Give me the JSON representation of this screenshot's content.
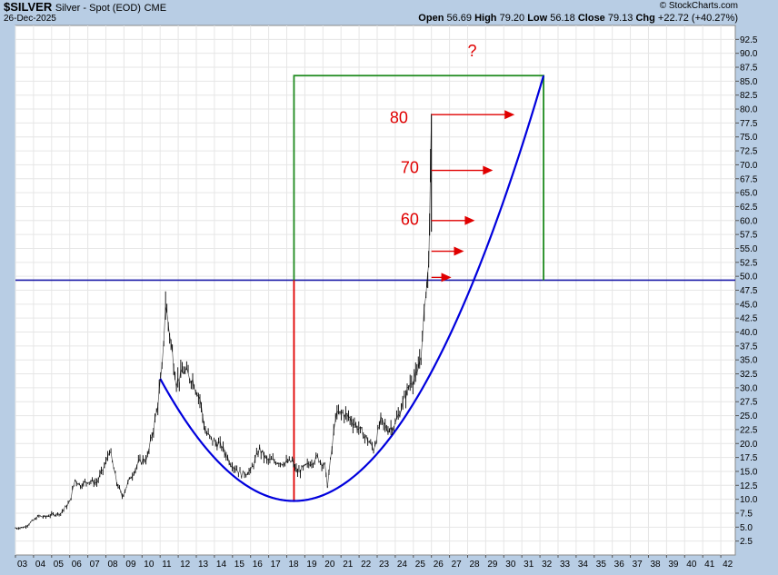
{
  "header": {
    "symbol": "$SILVER",
    "description": "Silver - Spot (EOD)",
    "exchange": "CME",
    "date": "26-Dec-2025",
    "brand": "© StockCharts.com",
    "open_label": "Open",
    "open": "56.69",
    "high_label": "High",
    "high": "79.20",
    "low_label": "Low",
    "low": "56.18",
    "close_label": "Close",
    "close": "79.13",
    "chg_label": "Chg",
    "chg": "+22.72 (+40.27%)"
  },
  "chart_data": {
    "type": "line",
    "x_ticks": [
      "03",
      "04",
      "05",
      "06",
      "07",
      "08",
      "09",
      "10",
      "11",
      "12",
      "13",
      "14",
      "15",
      "16",
      "17",
      "18",
      "19",
      "20",
      "21",
      "22",
      "23",
      "24",
      "25",
      "26",
      "27",
      "28",
      "29",
      "30",
      "31",
      "32",
      "33",
      "34",
      "35",
      "36",
      "37",
      "38",
      "39",
      "40",
      "41",
      "42"
    ],
    "y_ticks": [
      "2.5",
      "5.0",
      "7.5",
      "10.0",
      "12.5",
      "15.0",
      "17.5",
      "20.0",
      "22.5",
      "25.0",
      "27.5",
      "30.0",
      "32.5",
      "35.0",
      "37.5",
      "40.0",
      "42.5",
      "45.0",
      "47.5",
      "50.0",
      "52.5",
      "55.0",
      "57.5",
      "60.0",
      "62.5",
      "65.0",
      "67.5",
      "70.0",
      "72.5",
      "75.0",
      "77.5",
      "80.0",
      "82.5",
      "85.0",
      "87.5",
      "90.0",
      "92.5"
    ],
    "xlim": [
      2003,
      2042.8
    ],
    "ylim": [
      0,
      95
    ],
    "price": {
      "x": [
        2003.0,
        2003.5,
        2004.0,
        2004.3,
        2004.6,
        2005.0,
        2005.5,
        2006.0,
        2006.3,
        2006.6,
        2007.0,
        2007.5,
        2008.0,
        2008.2,
        2008.6,
        2008.9,
        2009.3,
        2009.8,
        2010.3,
        2010.8,
        2011.1,
        2011.3,
        2011.6,
        2011.9,
        2012.3,
        2012.8,
        2013.2,
        2013.5,
        2013.9,
        2014.4,
        2014.9,
        2015.5,
        2016.0,
        2016.5,
        2016.9,
        2017.4,
        2017.9,
        2018.3,
        2018.6,
        2018.9,
        2019.3,
        2019.7,
        2020.1,
        2020.25,
        2020.5,
        2020.7,
        2021.1,
        2021.5,
        2021.9,
        2022.4,
        2022.8,
        2023.2,
        2023.6,
        2024.0,
        2024.5,
        2024.9,
        2025.2,
        2025.5,
        2025.7,
        2025.8,
        2025.9,
        2026.0
      ],
      "close": [
        4.8,
        5.0,
        6.2,
        7.0,
        6.8,
        7.2,
        7.5,
        9.5,
        13.5,
        12.5,
        13.3,
        13.0,
        16.5,
        19.0,
        13.0,
        10.5,
        13.5,
        16.5,
        17.5,
        25.5,
        33.0,
        45.0,
        38.0,
        31.0,
        33.0,
        31.5,
        28.0,
        22.0,
        20.5,
        19.5,
        16.5,
        14.5,
        15.0,
        19.0,
        17.0,
        16.8,
        16.5,
        16.8,
        14.8,
        15.5,
        16.5,
        17.5,
        16.0,
        12.5,
        19.0,
        25.0,
        25.5,
        24.5,
        23.0,
        21.0,
        19.0,
        24.0,
        22.5,
        23.5,
        28.0,
        31.5,
        32.0,
        38.0,
        48.0,
        50.0,
        58.0,
        79.13
      ]
    },
    "parabola": {
      "vertex_x": 2018.4,
      "vertex_y": 9.7,
      "x_start": 2011.0,
      "x_end": 2032.2,
      "y_end": 86.0
    },
    "horizontal_line_y": 49.3,
    "red_vertical_x": 2018.4,
    "green_box": {
      "x_left": 2018.4,
      "x_right": 2032.2,
      "y_top": 86.0
    },
    "arrows": [
      {
        "x_from": 2026.0,
        "y": 79.0,
        "x_to": 2030.6
      },
      {
        "x_from": 2026.0,
        "y": 69.0,
        "x_to": 2029.4
      },
      {
        "x_from": 2026.0,
        "y": 60.0,
        "x_to": 2028.4
      },
      {
        "x_from": 2026.0,
        "y": 54.5,
        "x_to": 2027.8
      },
      {
        "x_from": 2026.0,
        "y": 49.8,
        "x_to": 2027.1
      }
    ],
    "annotations": [
      {
        "text": "80",
        "x": 2023.7,
        "y": 77.5
      },
      {
        "text": "70",
        "x": 2024.3,
        "y": 68.5
      },
      {
        "text": "60",
        "x": 2024.3,
        "y": 59.2
      },
      {
        "text": "?",
        "x": 2028.0,
        "y": 89.5
      }
    ],
    "colors": {
      "price": "#000000",
      "parabola": "#0000dd",
      "hline": "#1a1aa8",
      "red": "#e00000",
      "green": "#1e8a1e",
      "plot_bg": "#ffffff",
      "page_bg": "#b8cde4"
    }
  }
}
